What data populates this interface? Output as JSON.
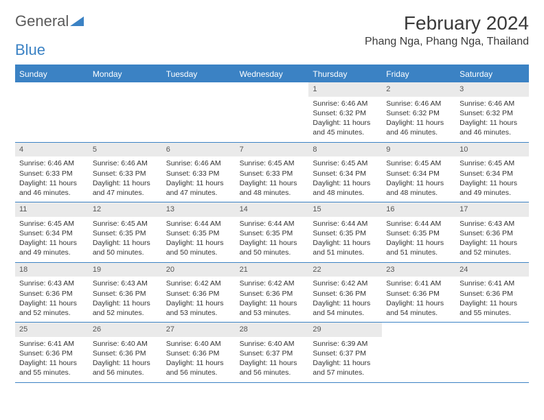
{
  "logo": {
    "word1": "General",
    "word2": "Blue"
  },
  "title": "February 2024",
  "location": "Phang Nga, Phang Nga, Thailand",
  "colors": {
    "accent": "#3b82c4",
    "header_bg": "#3b82c4",
    "header_text": "#ffffff",
    "daynum_bg": "#eaeaea",
    "text": "#333333",
    "background": "#ffffff"
  },
  "fonts": {
    "title_size": 28,
    "location_size": 16,
    "dayheader_size": 12,
    "cell_size": 10.5
  },
  "day_names": [
    "Sunday",
    "Monday",
    "Tuesday",
    "Wednesday",
    "Thursday",
    "Friday",
    "Saturday"
  ],
  "weeks": [
    [
      null,
      null,
      null,
      null,
      {
        "n": "1",
        "sr": "Sunrise: 6:46 AM",
        "ss": "Sunset: 6:32 PM",
        "dl1": "Daylight: 11 hours",
        "dl2": "and 45 minutes."
      },
      {
        "n": "2",
        "sr": "Sunrise: 6:46 AM",
        "ss": "Sunset: 6:32 PM",
        "dl1": "Daylight: 11 hours",
        "dl2": "and 46 minutes."
      },
      {
        "n": "3",
        "sr": "Sunrise: 6:46 AM",
        "ss": "Sunset: 6:32 PM",
        "dl1": "Daylight: 11 hours",
        "dl2": "and 46 minutes."
      }
    ],
    [
      {
        "n": "4",
        "sr": "Sunrise: 6:46 AM",
        "ss": "Sunset: 6:33 PM",
        "dl1": "Daylight: 11 hours",
        "dl2": "and 46 minutes."
      },
      {
        "n": "5",
        "sr": "Sunrise: 6:46 AM",
        "ss": "Sunset: 6:33 PM",
        "dl1": "Daylight: 11 hours",
        "dl2": "and 47 minutes."
      },
      {
        "n": "6",
        "sr": "Sunrise: 6:46 AM",
        "ss": "Sunset: 6:33 PM",
        "dl1": "Daylight: 11 hours",
        "dl2": "and 47 minutes."
      },
      {
        "n": "7",
        "sr": "Sunrise: 6:45 AM",
        "ss": "Sunset: 6:33 PM",
        "dl1": "Daylight: 11 hours",
        "dl2": "and 48 minutes."
      },
      {
        "n": "8",
        "sr": "Sunrise: 6:45 AM",
        "ss": "Sunset: 6:34 PM",
        "dl1": "Daylight: 11 hours",
        "dl2": "and 48 minutes."
      },
      {
        "n": "9",
        "sr": "Sunrise: 6:45 AM",
        "ss": "Sunset: 6:34 PM",
        "dl1": "Daylight: 11 hours",
        "dl2": "and 48 minutes."
      },
      {
        "n": "10",
        "sr": "Sunrise: 6:45 AM",
        "ss": "Sunset: 6:34 PM",
        "dl1": "Daylight: 11 hours",
        "dl2": "and 49 minutes."
      }
    ],
    [
      {
        "n": "11",
        "sr": "Sunrise: 6:45 AM",
        "ss": "Sunset: 6:34 PM",
        "dl1": "Daylight: 11 hours",
        "dl2": "and 49 minutes."
      },
      {
        "n": "12",
        "sr": "Sunrise: 6:45 AM",
        "ss": "Sunset: 6:35 PM",
        "dl1": "Daylight: 11 hours",
        "dl2": "and 50 minutes."
      },
      {
        "n": "13",
        "sr": "Sunrise: 6:44 AM",
        "ss": "Sunset: 6:35 PM",
        "dl1": "Daylight: 11 hours",
        "dl2": "and 50 minutes."
      },
      {
        "n": "14",
        "sr": "Sunrise: 6:44 AM",
        "ss": "Sunset: 6:35 PM",
        "dl1": "Daylight: 11 hours",
        "dl2": "and 50 minutes."
      },
      {
        "n": "15",
        "sr": "Sunrise: 6:44 AM",
        "ss": "Sunset: 6:35 PM",
        "dl1": "Daylight: 11 hours",
        "dl2": "and 51 minutes."
      },
      {
        "n": "16",
        "sr": "Sunrise: 6:44 AM",
        "ss": "Sunset: 6:35 PM",
        "dl1": "Daylight: 11 hours",
        "dl2": "and 51 minutes."
      },
      {
        "n": "17",
        "sr": "Sunrise: 6:43 AM",
        "ss": "Sunset: 6:36 PM",
        "dl1": "Daylight: 11 hours",
        "dl2": "and 52 minutes."
      }
    ],
    [
      {
        "n": "18",
        "sr": "Sunrise: 6:43 AM",
        "ss": "Sunset: 6:36 PM",
        "dl1": "Daylight: 11 hours",
        "dl2": "and 52 minutes."
      },
      {
        "n": "19",
        "sr": "Sunrise: 6:43 AM",
        "ss": "Sunset: 6:36 PM",
        "dl1": "Daylight: 11 hours",
        "dl2": "and 52 minutes."
      },
      {
        "n": "20",
        "sr": "Sunrise: 6:42 AM",
        "ss": "Sunset: 6:36 PM",
        "dl1": "Daylight: 11 hours",
        "dl2": "and 53 minutes."
      },
      {
        "n": "21",
        "sr": "Sunrise: 6:42 AM",
        "ss": "Sunset: 6:36 PM",
        "dl1": "Daylight: 11 hours",
        "dl2": "and 53 minutes."
      },
      {
        "n": "22",
        "sr": "Sunrise: 6:42 AM",
        "ss": "Sunset: 6:36 PM",
        "dl1": "Daylight: 11 hours",
        "dl2": "and 54 minutes."
      },
      {
        "n": "23",
        "sr": "Sunrise: 6:41 AM",
        "ss": "Sunset: 6:36 PM",
        "dl1": "Daylight: 11 hours",
        "dl2": "and 54 minutes."
      },
      {
        "n": "24",
        "sr": "Sunrise: 6:41 AM",
        "ss": "Sunset: 6:36 PM",
        "dl1": "Daylight: 11 hours",
        "dl2": "and 55 minutes."
      }
    ],
    [
      {
        "n": "25",
        "sr": "Sunrise: 6:41 AM",
        "ss": "Sunset: 6:36 PM",
        "dl1": "Daylight: 11 hours",
        "dl2": "and 55 minutes."
      },
      {
        "n": "26",
        "sr": "Sunrise: 6:40 AM",
        "ss": "Sunset: 6:36 PM",
        "dl1": "Daylight: 11 hours",
        "dl2": "and 56 minutes."
      },
      {
        "n": "27",
        "sr": "Sunrise: 6:40 AM",
        "ss": "Sunset: 6:36 PM",
        "dl1": "Daylight: 11 hours",
        "dl2": "and 56 minutes."
      },
      {
        "n": "28",
        "sr": "Sunrise: 6:40 AM",
        "ss": "Sunset: 6:37 PM",
        "dl1": "Daylight: 11 hours",
        "dl2": "and 56 minutes."
      },
      {
        "n": "29",
        "sr": "Sunrise: 6:39 AM",
        "ss": "Sunset: 6:37 PM",
        "dl1": "Daylight: 11 hours",
        "dl2": "and 57 minutes."
      },
      null,
      null
    ]
  ]
}
